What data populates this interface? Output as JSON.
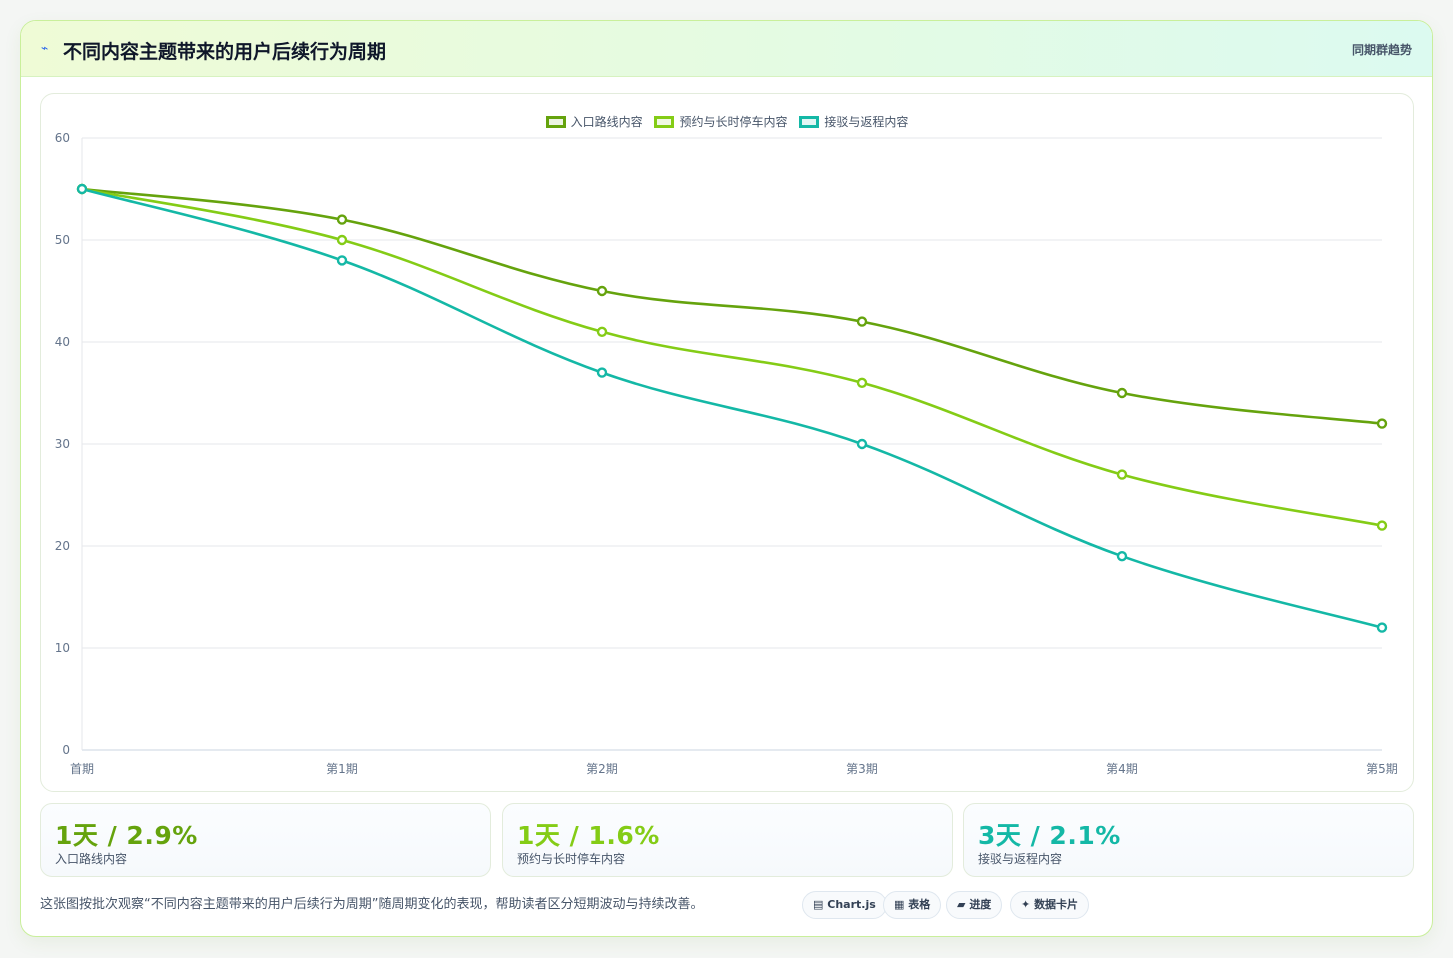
{
  "header": {
    "icon": "sparkline-icon",
    "title": "不同内容主题带来的用户后续行为周期",
    "tag": "同期群趋势"
  },
  "chart_data": {
    "type": "line",
    "categories": [
      "首期",
      "第1期",
      "第2期",
      "第3期",
      "第4期",
      "第5期"
    ],
    "series": [
      {
        "name": "入口路线内容",
        "values": [
          55,
          52,
          45,
          42,
          35,
          32
        ],
        "color": "#65a30d"
      },
      {
        "name": "预约与长时停车内容",
        "values": [
          55,
          50,
          41,
          36,
          27,
          22
        ],
        "color": "#84cc16"
      },
      {
        "name": "接驳与返程内容",
        "values": [
          55,
          48,
          37,
          30,
          19,
          12
        ],
        "color": "#14b8a6"
      }
    ],
    "ylim": [
      0,
      60
    ],
    "yticks": [
      0,
      10,
      20,
      30,
      40,
      50,
      60
    ],
    "grid": true,
    "legend": "top-center"
  },
  "stats": [
    {
      "value": "1天 / 2.9%",
      "label": "入口路线内容",
      "color": "#65a30d"
    },
    {
      "value": "1天 / 1.6%",
      "label": "预约与长时停车内容",
      "color": "#84cc16"
    },
    {
      "value": "3天 / 2.1%",
      "label": "接驳与返程内容",
      "color": "#14b8a6"
    }
  ],
  "footnote": "这张图按批次观察“不同内容主题带来的用户后续行为周期”随周期变化的表现，帮助读者区分短期波动与持续改善。",
  "pills": [
    {
      "icon": "chart-icon",
      "glyph": "▤",
      "label": "Chart.js"
    },
    {
      "icon": "table-icon",
      "glyph": "▦",
      "label": "表格"
    },
    {
      "icon": "progress-icon",
      "glyph": "▰",
      "label": "进度"
    },
    {
      "icon": "sparkle-icon",
      "glyph": "✦",
      "label": "数据卡片"
    }
  ]
}
